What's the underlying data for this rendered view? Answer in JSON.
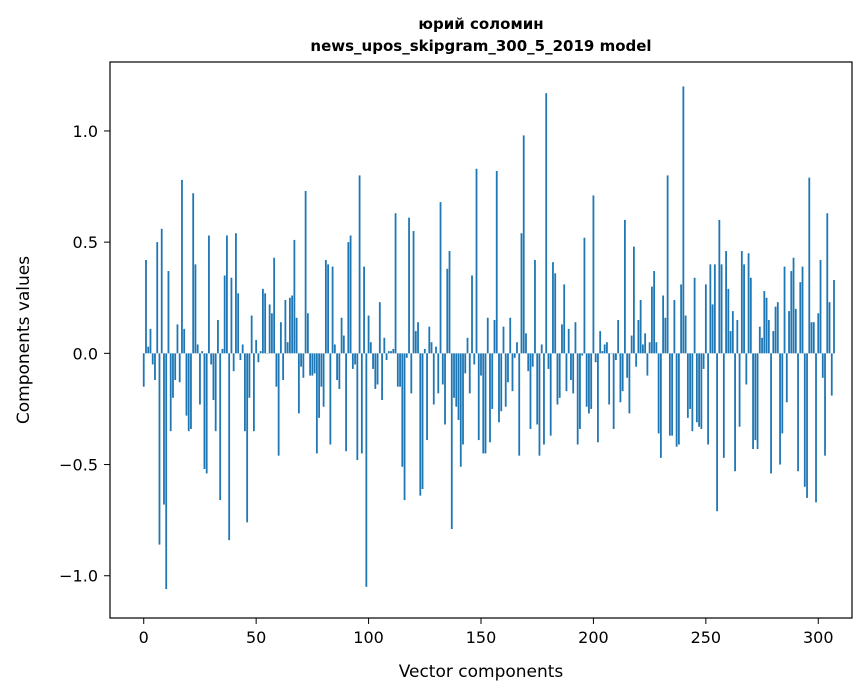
{
  "chart_data": {
    "type": "bar",
    "title_line1": "юрий соломин",
    "title_line2": "news_upos_skipgram_300_5_2019 model",
    "xlabel": "Vector components",
    "ylabel": "Components values",
    "xlim": [
      -15,
      315
    ],
    "ylim": [
      -1.19,
      1.31
    ],
    "xticks": [
      {
        "value": 0,
        "label": "0"
      },
      {
        "value": 50,
        "label": "50"
      },
      {
        "value": 100,
        "label": "100"
      },
      {
        "value": 150,
        "label": "150"
      },
      {
        "value": 200,
        "label": "200"
      },
      {
        "value": 250,
        "label": "250"
      },
      {
        "value": 300,
        "label": "300"
      }
    ],
    "yticks": [
      {
        "value": -1.0,
        "label": "−1.0"
      },
      {
        "value": -0.5,
        "label": "−0.5"
      },
      {
        "value": 0.0,
        "label": "0.0"
      },
      {
        "value": 0.5,
        "label": "0.5"
      },
      {
        "value": 1.0,
        "label": "1.0"
      }
    ],
    "bar_color": "#1f77b4",
    "grid": false,
    "values": [
      -0.15,
      0.42,
      0.03,
      0.11,
      -0.05,
      -0.12,
      0.5,
      -0.86,
      0.56,
      -0.68,
      -1.06,
      0.37,
      -0.35,
      -0.2,
      -0.12,
      0.13,
      -0.13,
      0.78,
      0.11,
      -0.28,
      -0.35,
      -0.34,
      0.72,
      0.4,
      0.04,
      -0.23,
      0.01,
      -0.52,
      -0.54,
      0.53,
      -0.05,
      -0.21,
      -0.35,
      0.15,
      -0.66,
      0.02,
      0.35,
      0.53,
      -0.84,
      0.34,
      -0.08,
      0.54,
      0.27,
      -0.03,
      0.04,
      -0.35,
      -0.76,
      -0.2,
      0.17,
      -0.35,
      0.06,
      -0.04,
      0.01,
      0.29,
      0.27,
      0.0,
      0.22,
      0.18,
      0.43,
      -0.15,
      -0.46,
      0.14,
      -0.12,
      0.24,
      0.05,
      0.25,
      0.26,
      0.51,
      0.16,
      -0.27,
      -0.06,
      -0.11,
      0.73,
      0.18,
      -0.1,
      -0.1,
      -0.09,
      -0.45,
      -0.29,
      -0.15,
      -0.24,
      0.42,
      0.4,
      -0.41,
      0.39,
      0.04,
      -0.12,
      -0.16,
      0.16,
      0.08,
      -0.44,
      0.5,
      0.53,
      -0.07,
      -0.05,
      -0.48,
      0.8,
      -0.45,
      0.39,
      -1.05,
      0.17,
      0.05,
      -0.07,
      -0.16,
      -0.14,
      0.23,
      -0.21,
      0.07,
      -0.03,
      0.01,
      0.01,
      0.02,
      0.63,
      -0.15,
      -0.15,
      -0.51,
      -0.66,
      -0.02,
      0.61,
      -0.18,
      0.55,
      0.1,
      0.14,
      -0.64,
      -0.61,
      0.02,
      -0.39,
      0.12,
      0.05,
      -0.23,
      0.03,
      -0.18,
      0.68,
      -0.14,
      -0.32,
      0.38,
      0.46,
      -0.79,
      -0.2,
      -0.24,
      -0.3,
      -0.51,
      -0.41,
      -0.09,
      0.07,
      -0.18,
      0.35,
      -0.05,
      0.83,
      -0.39,
      -0.1,
      -0.45,
      -0.45,
      0.16,
      -0.4,
      -0.25,
      0.15,
      0.82,
      -0.31,
      -0.26,
      0.12,
      -0.24,
      -0.13,
      0.16,
      -0.17,
      -0.02,
      0.05,
      -0.46,
      0.54,
      0.98,
      0.09,
      -0.08,
      -0.34,
      -0.06,
      0.42,
      -0.32,
      -0.46,
      0.04,
      -0.41,
      1.17,
      -0.07,
      -0.37,
      0.41,
      0.36,
      -0.23,
      -0.2,
      0.13,
      0.31,
      -0.17,
      0.11,
      -0.12,
      -0.18,
      0.14,
      -0.41,
      -0.34,
      -0.01,
      0.52,
      -0.24,
      -0.27,
      -0.25,
      0.71,
      -0.04,
      -0.4,
      0.1,
      0.01,
      0.04,
      0.05,
      -0.23,
      0.0,
      -0.34,
      -0.03,
      0.15,
      -0.22,
      -0.17,
      0.6,
      -0.11,
      -0.27,
      0.08,
      0.48,
      -0.06,
      0.15,
      0.24,
      0.04,
      0.09,
      -0.1,
      0.05,
      0.3,
      0.37,
      0.05,
      -0.36,
      -0.47,
      0.26,
      0.16,
      0.8,
      -0.37,
      -0.37,
      0.24,
      -0.42,
      -0.41,
      0.31,
      1.2,
      0.17,
      -0.29,
      -0.25,
      -0.35,
      0.34,
      -0.31,
      -0.33,
      -0.34,
      -0.07,
      0.31,
      -0.41,
      0.4,
      0.22,
      0.4,
      -0.71,
      0.6,
      0.4,
      -0.47,
      0.46,
      0.29,
      0.1,
      0.19,
      -0.53,
      0.15,
      -0.33,
      0.46,
      0.4,
      -0.14,
      0.45,
      0.34,
      -0.43,
      -0.39,
      -0.43,
      0.12,
      0.07,
      0.28,
      0.25,
      0.15,
      -0.54,
      0.1,
      0.21,
      0.23,
      -0.5,
      -0.36,
      0.39,
      -0.22,
      0.19,
      0.37,
      0.43,
      0.2,
      -0.53,
      0.32,
      0.39,
      -0.6,
      -0.65,
      0.79,
      0.14,
      0.14,
      -0.67,
      0.18,
      0.42,
      -0.11,
      -0.46,
      0.63,
      0.23,
      -0.19,
      0.33
    ]
  }
}
